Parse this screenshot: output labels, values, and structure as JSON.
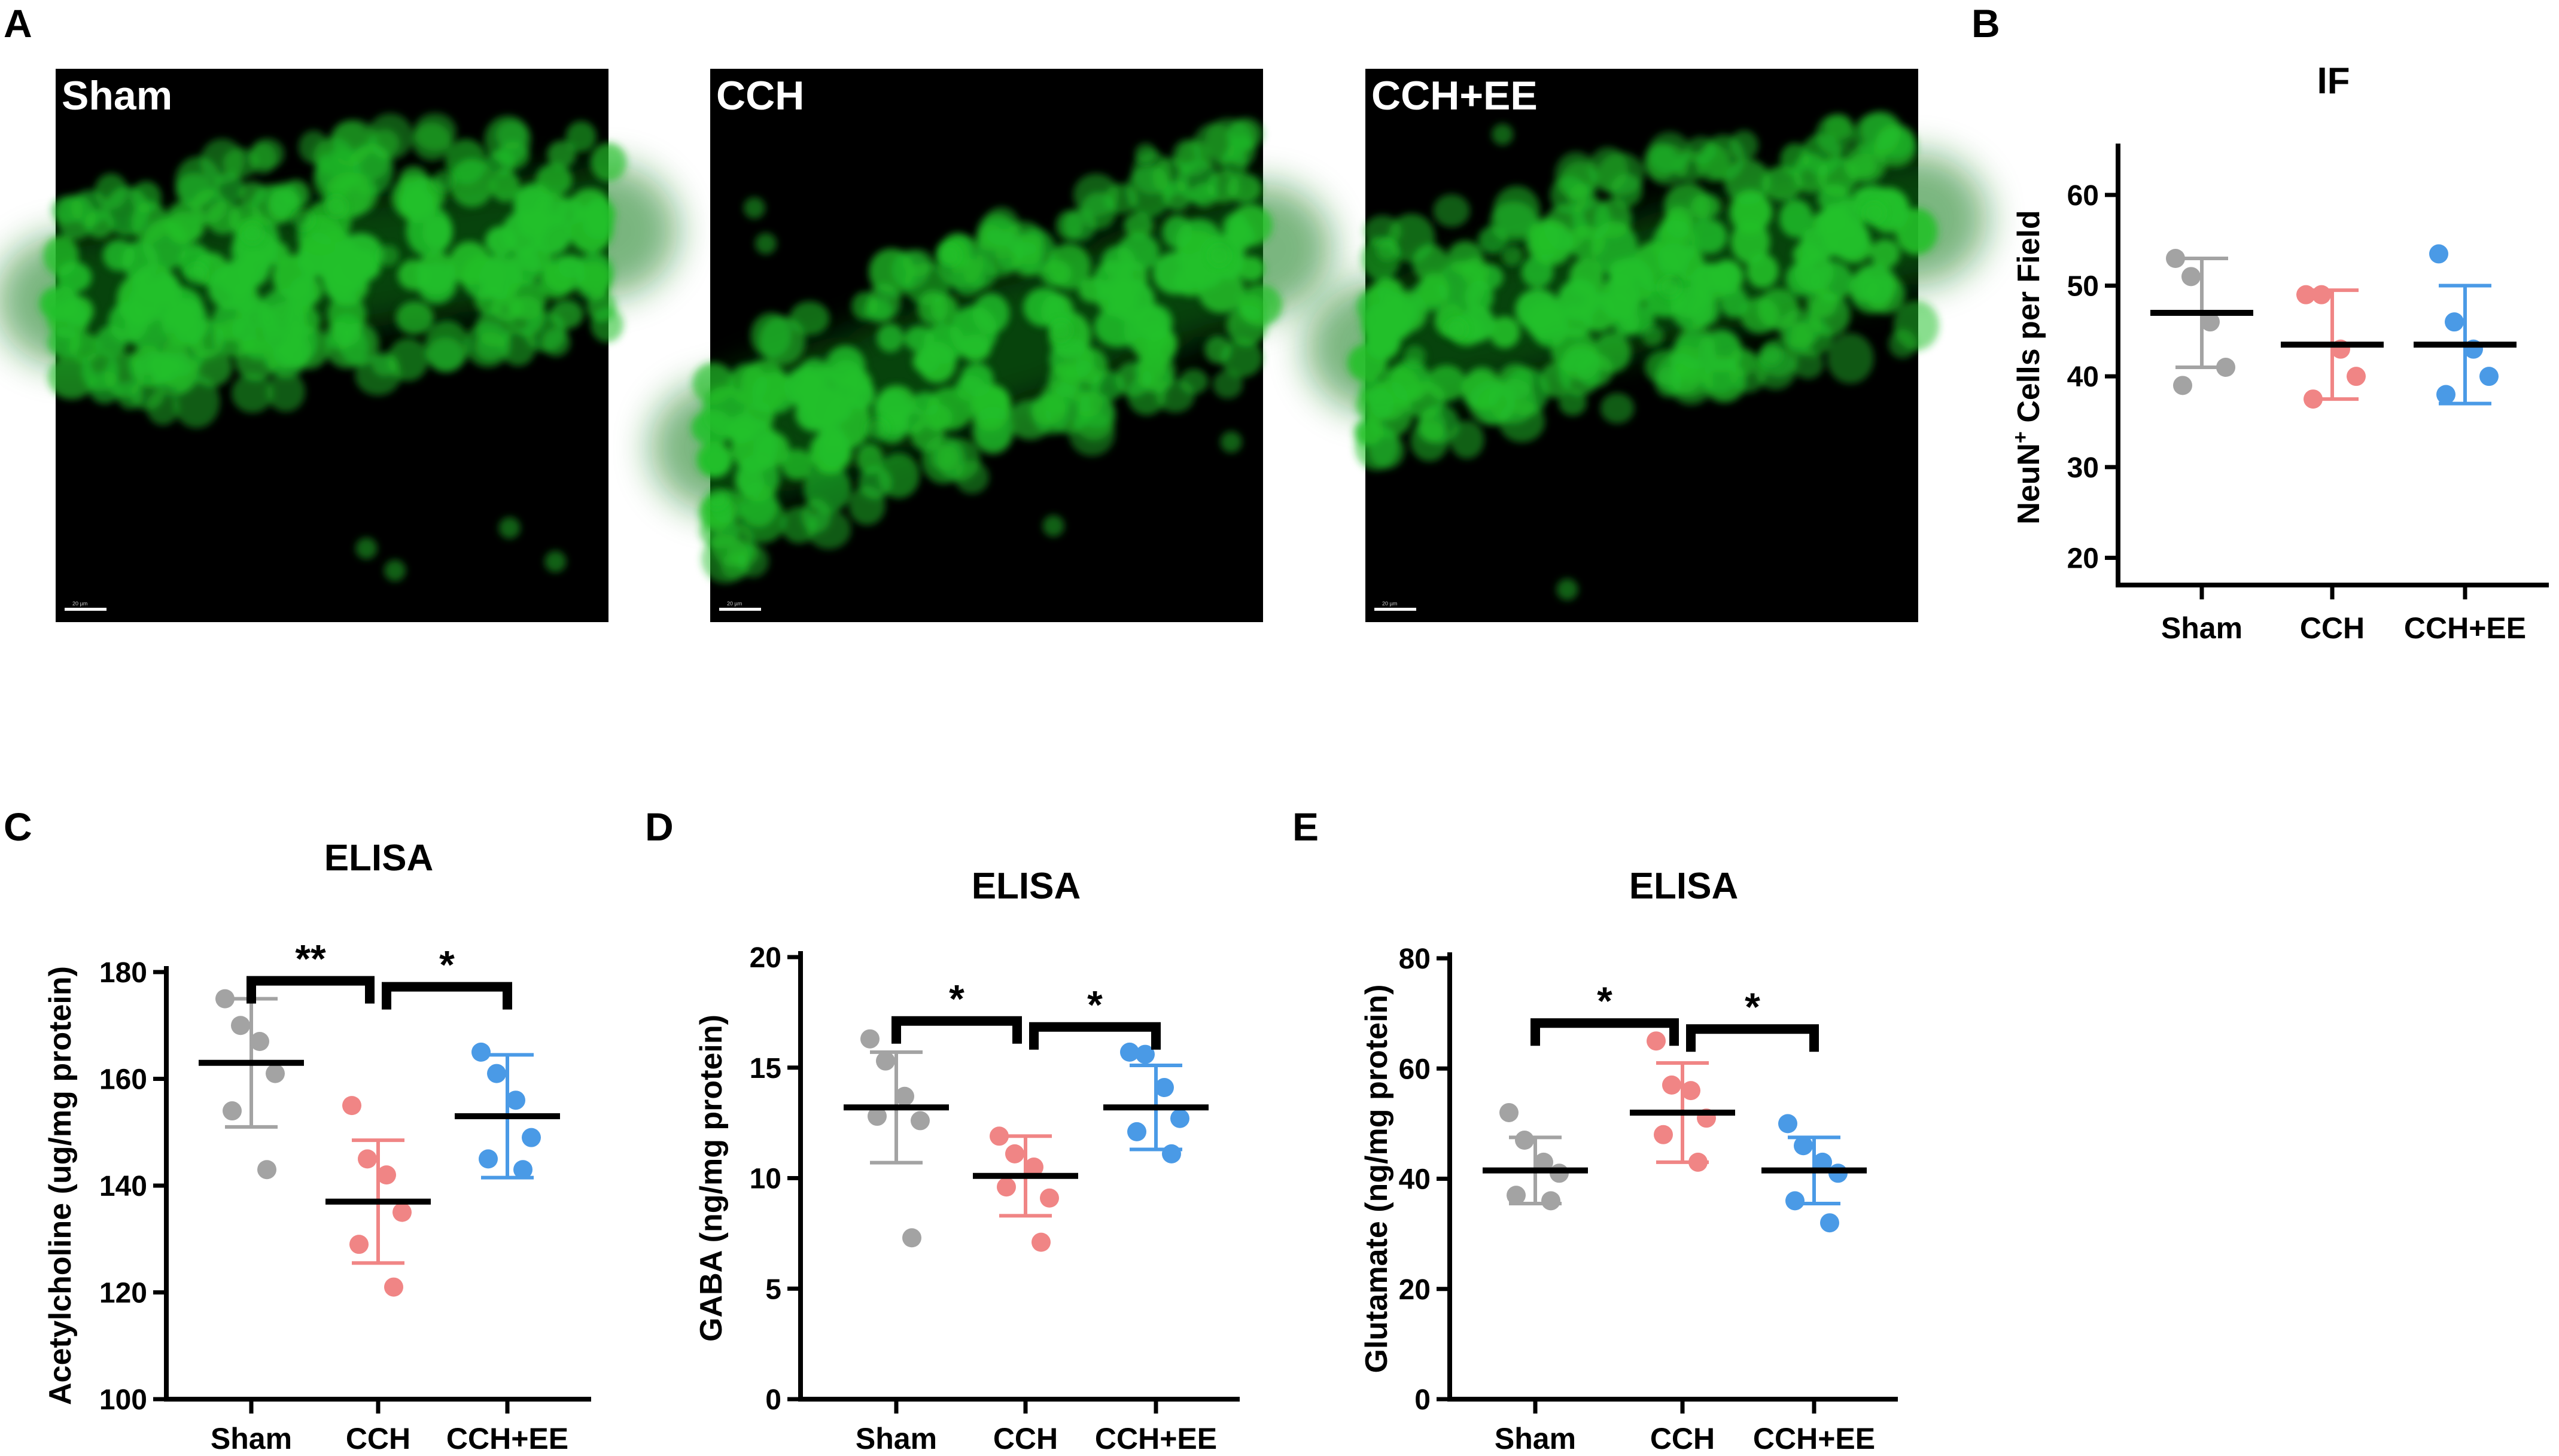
{
  "panels": [
    {
      "letter": "A"
    },
    {
      "letter": "B"
    },
    {
      "letter": "C"
    },
    {
      "letter": "D"
    },
    {
      "letter": "E"
    }
  ],
  "micrographs": [
    {
      "label": "Sham",
      "scalebar": "20 µm"
    },
    {
      "label": "CCH",
      "scalebar": "20 µm"
    },
    {
      "label": "CCH+EE",
      "scalebar": "20 µm"
    }
  ],
  "colors": {
    "Sham": "#a3a3a3",
    "CCH": "#f08585",
    "CCH+EE": "#4a9ae6",
    "mean": "#000000",
    "stain": "#22c02a"
  },
  "chart_data": [
    {
      "type": "scatter",
      "title": "IF",
      "ylabel": "NeuN⁺ Cells per Field",
      "categories": [
        "Sham",
        "CCH",
        "CCH+EE"
      ],
      "ylim": [
        17,
        65
      ],
      "yticks": [
        20,
        30,
        40,
        50,
        60
      ],
      "points": [
        [
          53,
          51,
          46,
          41,
          39
        ],
        [
          49,
          49,
          43,
          40,
          37.5
        ],
        [
          53.5,
          46,
          43,
          40,
          38
        ]
      ],
      "mean": [
        47,
        43.5,
        43.5
      ],
      "sd": [
        6,
        6,
        6.5
      ],
      "significance": []
    },
    {
      "type": "scatter",
      "title": "ELISA",
      "ylabel": "Acetylcholine  (ug/mg protein)",
      "categories": [
        "Sham",
        "CCH",
        "CCH+EE"
      ],
      "ylim": [
        100,
        180
      ],
      "yticks": [
        100,
        120,
        140,
        160,
        180
      ],
      "points": [
        [
          175,
          170,
          167,
          161,
          154,
          143
        ],
        [
          155,
          145,
          142,
          135,
          129,
          121
        ],
        [
          165,
          161,
          156,
          149,
          145,
          143
        ]
      ],
      "mean": [
        163,
        137,
        153
      ],
      "sd": [
        12,
        11.5,
        11.5
      ],
      "significance": [
        {
          "from": 0,
          "to": 1,
          "label": "**"
        },
        {
          "from": 1,
          "to": 2,
          "label": "*"
        }
      ]
    },
    {
      "type": "scatter",
      "title": "ELISA",
      "ylabel": "GABA (ng/mg protein)",
      "categories": [
        "Sham",
        "CCH",
        "CCH+EE"
      ],
      "ylim": [
        0,
        20
      ],
      "yticks": [
        0,
        5,
        10,
        15,
        20
      ],
      "points": [
        [
          16.3,
          15.3,
          13.7,
          12.6,
          12.8,
          7.3
        ],
        [
          11.9,
          11.1,
          10.5,
          9.1,
          9.6,
          7.1
        ],
        [
          15.7,
          15.6,
          14.1,
          12.7,
          12.1,
          11.1
        ]
      ],
      "mean": [
        13.2,
        10.1,
        13.2
      ],
      "sd": [
        2.5,
        1.8,
        1.9
      ],
      "significance": [
        {
          "from": 0,
          "to": 1,
          "label": "*"
        },
        {
          "from": 1,
          "to": 2,
          "label": "*"
        }
      ]
    },
    {
      "type": "scatter",
      "title": "ELISA",
      "ylabel": "Glutamate (ng/mg protein)",
      "categories": [
        "Sham",
        "CCH",
        "CCH+EE"
      ],
      "ylim": [
        0,
        80
      ],
      "yticks": [
        0,
        20,
        40,
        60,
        80
      ],
      "points": [
        [
          52,
          47,
          43,
          41,
          37,
          36
        ],
        [
          65,
          57,
          56,
          51,
          48,
          43
        ],
        [
          50,
          46,
          43,
          41,
          36,
          32
        ]
      ],
      "mean": [
        41.5,
        52,
        41.5
      ],
      "sd": [
        6,
        9,
        6
      ],
      "significance": [
        {
          "from": 0,
          "to": 1,
          "label": "*"
        },
        {
          "from": 1,
          "to": 2,
          "label": "*"
        }
      ]
    }
  ]
}
